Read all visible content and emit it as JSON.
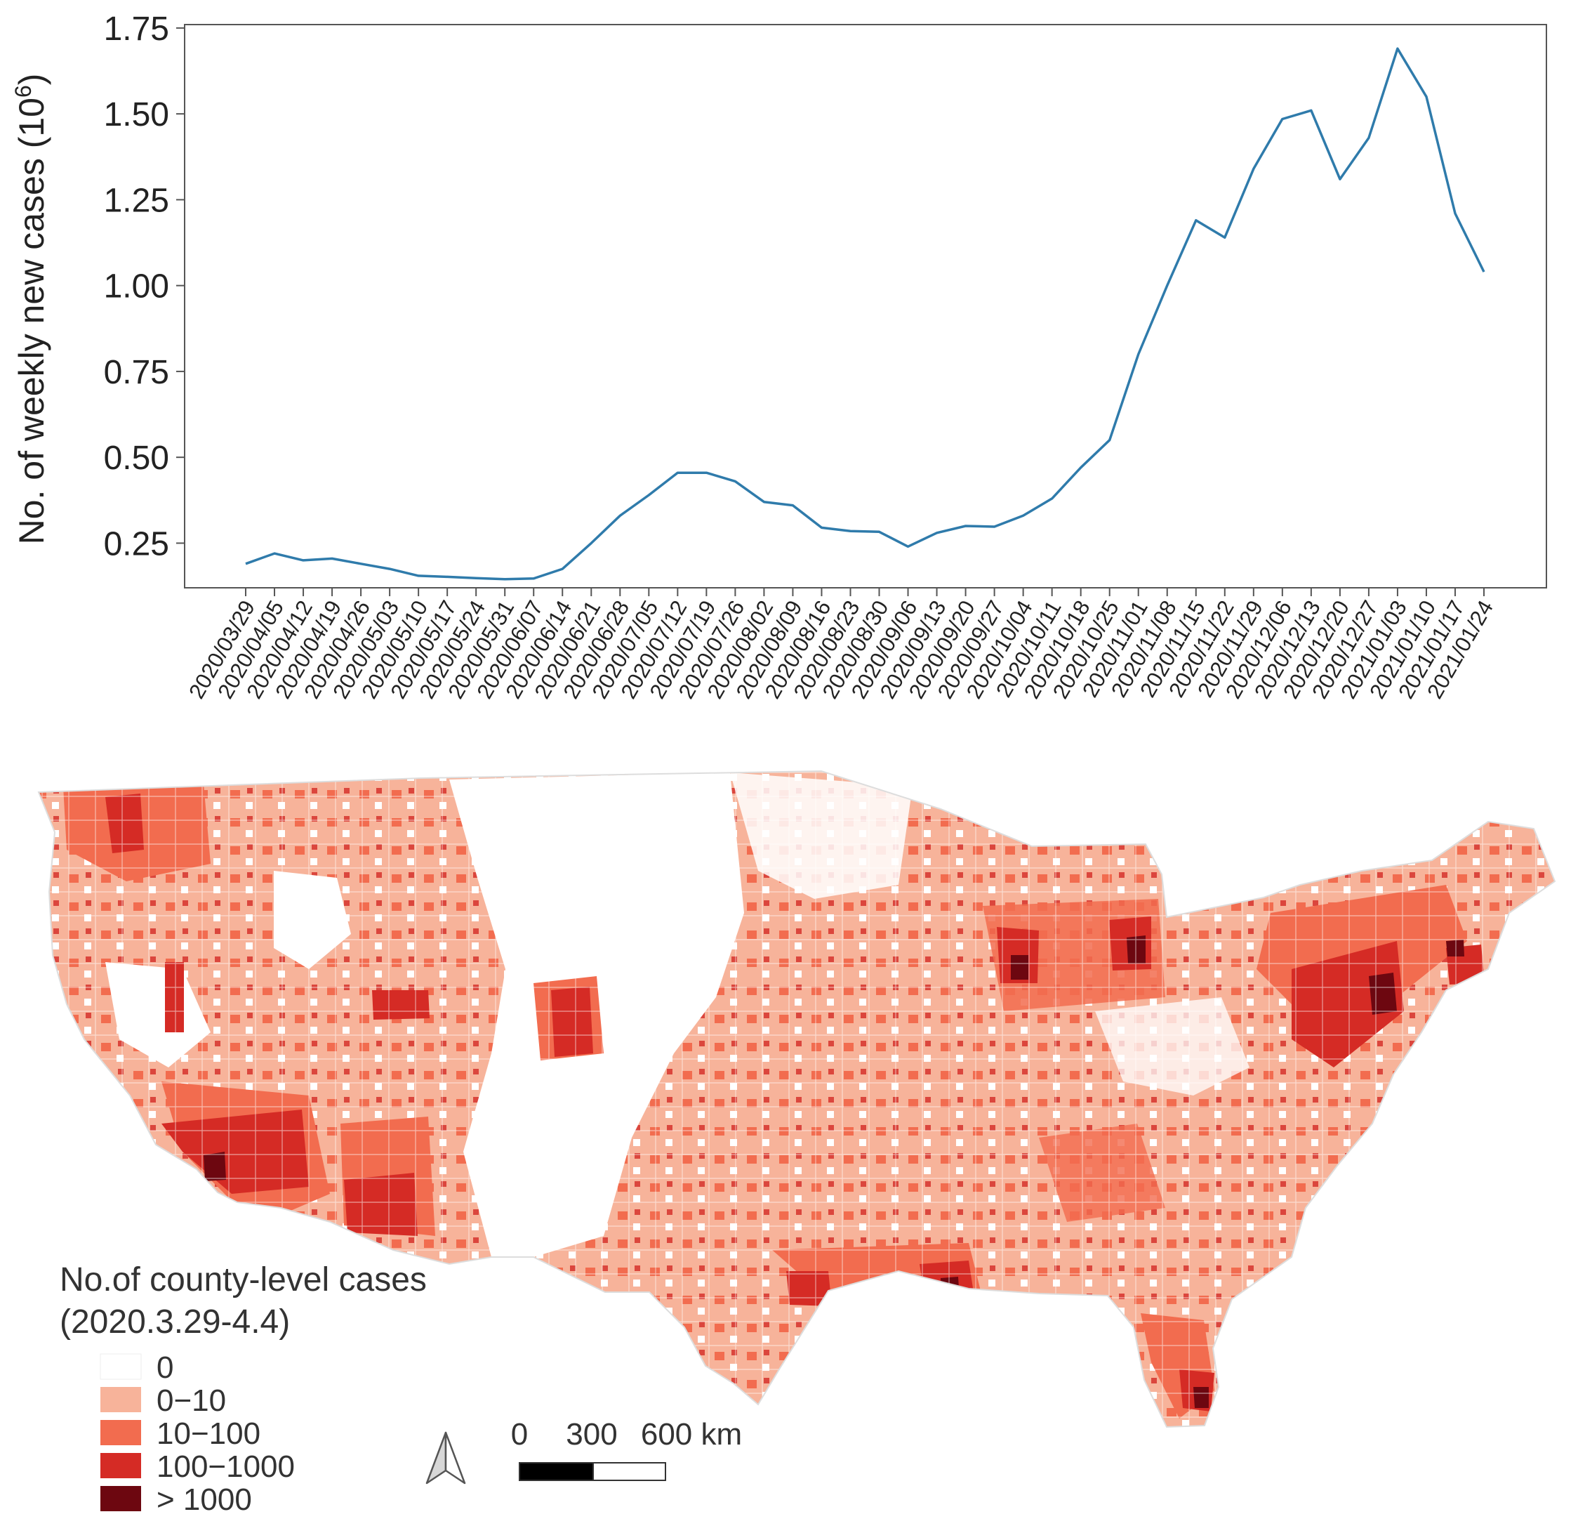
{
  "chart_data": [
    {
      "type": "line",
      "title": "",
      "xlabel": "",
      "ylabel": "No. of weekly new cases (10",
      "ylabel_sup": "6",
      "ylabel_close": ")",
      "ylim": [
        0.12,
        1.76
      ],
      "yticks": [
        "0.25",
        "0.50",
        "0.75",
        "1.00",
        "1.25",
        "1.50",
        "1.75"
      ],
      "ytick_values": [
        0.25,
        0.5,
        0.75,
        1.0,
        1.25,
        1.5,
        1.75
      ],
      "x": [
        "2020/03/29",
        "2020/04/05",
        "2020/04/12",
        "2020/04/19",
        "2020/04/26",
        "2020/05/03",
        "2020/05/10",
        "2020/05/17",
        "2020/05/24",
        "2020/05/31",
        "2020/06/07",
        "2020/06/14",
        "2020/06/21",
        "2020/06/28",
        "2020/07/05",
        "2020/07/12",
        "2020/07/19",
        "2020/07/26",
        "2020/08/02",
        "2020/08/09",
        "2020/08/16",
        "2020/08/23",
        "2020/08/30",
        "2020/09/06",
        "2020/09/13",
        "2020/09/20",
        "2020/09/27",
        "2020/10/04",
        "2020/10/11",
        "2020/10/18",
        "2020/10/25",
        "2020/11/01",
        "2020/11/08",
        "2020/11/15",
        "2020/11/22",
        "2020/11/29",
        "2020/12/06",
        "2020/12/13",
        "2020/12/20",
        "2020/12/27",
        "2021/01/03",
        "2021/01/10",
        "2021/01/17",
        "2021/01/24"
      ],
      "series": [
        {
          "name": "Weekly new cases",
          "color": "#2f7bab",
          "values": [
            0.19,
            0.22,
            0.2,
            0.205,
            0.19,
            0.175,
            0.155,
            0.152,
            0.148,
            0.145,
            0.147,
            0.175,
            0.25,
            0.33,
            0.39,
            0.455,
            0.455,
            0.43,
            0.37,
            0.36,
            0.295,
            0.285,
            0.283,
            0.24,
            0.28,
            0.3,
            0.298,
            0.33,
            0.38,
            0.47,
            0.55,
            0.8,
            1.0,
            1.19,
            1.14,
            1.34,
            1.485,
            1.51,
            1.31,
            1.43,
            1.69,
            1.55,
            1.21,
            1.04
          ]
        }
      ]
    },
    {
      "type": "choropleth",
      "title": "No.of county-level cases",
      "subtitle": "(2020.3.29-4.4)",
      "legend": [
        {
          "label": "0",
          "color": "#ffffff"
        },
        {
          "label": "0−10",
          "color": "#f7b39a"
        },
        {
          "label": "10−100",
          "color": "#f26c4f"
        },
        {
          "label": "100−1000",
          "color": "#d52b25"
        },
        {
          "label": "> 1000",
          "color": "#6d0710"
        }
      ],
      "scale_bar": {
        "ticks": [
          "0",
          "300",
          "600 km"
        ]
      },
      "north_arrow": "north-arrow-icon"
    }
  ]
}
